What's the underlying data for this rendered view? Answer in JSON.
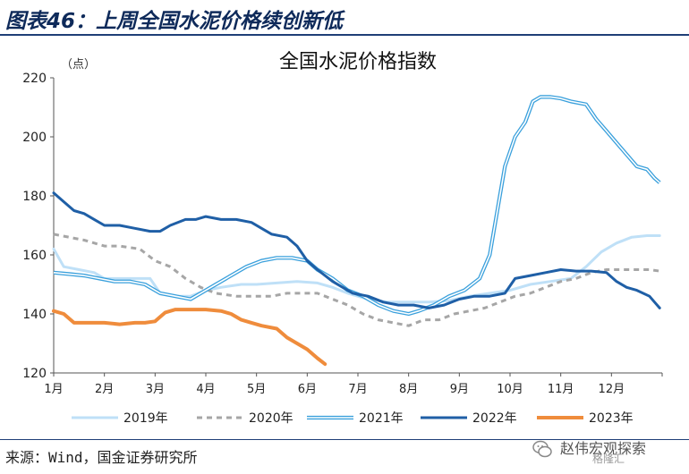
{
  "header": {
    "title": "图表46：上周全国水泥价格续创新低"
  },
  "footer": {
    "source": "来源：Wind，国金证券研究所",
    "watermark_text": "赵伟宏观探索",
    "watermark_brand": "格隆汇"
  },
  "chart_data": {
    "type": "line",
    "title": "全国水泥价格指数",
    "ylabel": "（点）",
    "xlabel": "",
    "ylim": [
      120,
      220
    ],
    "yticks": [
      120,
      140,
      160,
      180,
      200,
      220
    ],
    "xlim": [
      1,
      13
    ],
    "xticks": [
      1,
      2,
      3,
      4,
      5,
      6,
      7,
      8,
      9,
      10,
      11,
      12
    ],
    "xtick_labels": [
      "1月",
      "2月",
      "3月",
      "4月",
      "5月",
      "6月",
      "7月",
      "8月",
      "9月",
      "10月",
      "11月",
      "12月"
    ],
    "legend_position": "bottom",
    "series": [
      {
        "name": "2019年",
        "color": "#bfe0f7",
        "style": "solid",
        "width": 3,
        "points": [
          [
            1.0,
            162
          ],
          [
            1.2,
            156
          ],
          [
            1.5,
            155
          ],
          [
            1.8,
            154
          ],
          [
            2.0,
            152
          ],
          [
            2.3,
            152
          ],
          [
            2.7,
            152
          ],
          [
            2.9,
            152
          ],
          [
            3.1,
            147
          ],
          [
            3.4,
            146
          ],
          [
            3.7,
            146
          ],
          [
            4.0,
            148
          ],
          [
            4.3,
            149
          ],
          [
            4.7,
            150
          ],
          [
            5.0,
            150
          ],
          [
            5.4,
            150.5
          ],
          [
            5.8,
            151
          ],
          [
            6.2,
            150.5
          ],
          [
            6.5,
            149
          ],
          [
            6.8,
            147
          ],
          [
            7.2,
            145
          ],
          [
            7.6,
            144
          ],
          [
            8.0,
            144
          ],
          [
            8.4,
            144
          ],
          [
            8.8,
            144.5
          ],
          [
            9.2,
            146
          ],
          [
            9.6,
            147
          ],
          [
            10.0,
            148
          ],
          [
            10.4,
            150
          ],
          [
            10.8,
            151
          ],
          [
            11.2,
            152
          ],
          [
            11.5,
            156
          ],
          [
            11.8,
            161
          ],
          [
            12.1,
            164
          ],
          [
            12.4,
            166
          ],
          [
            12.7,
            166.5
          ],
          [
            12.95,
            166.5
          ]
        ]
      },
      {
        "name": "2020年",
        "color": "#a6a6a6",
        "style": "dashed",
        "width": 3,
        "points": [
          [
            1.0,
            167
          ],
          [
            1.3,
            166
          ],
          [
            1.6,
            165
          ],
          [
            2.0,
            163
          ],
          [
            2.3,
            163
          ],
          [
            2.7,
            162
          ],
          [
            3.0,
            158
          ],
          [
            3.3,
            156
          ],
          [
            3.6,
            152
          ],
          [
            3.9,
            149
          ],
          [
            4.2,
            147
          ],
          [
            4.6,
            146
          ],
          [
            5.0,
            146
          ],
          [
            5.3,
            146
          ],
          [
            5.6,
            147
          ],
          [
            5.9,
            147
          ],
          [
            6.2,
            147
          ],
          [
            6.5,
            145
          ],
          [
            6.8,
            143
          ],
          [
            7.1,
            140
          ],
          [
            7.4,
            138
          ],
          [
            7.7,
            137
          ],
          [
            8.0,
            136
          ],
          [
            8.3,
            138
          ],
          [
            8.6,
            138
          ],
          [
            8.9,
            140
          ],
          [
            9.2,
            141
          ],
          [
            9.5,
            142
          ],
          [
            9.8,
            144
          ],
          [
            10.1,
            146
          ],
          [
            10.4,
            147
          ],
          [
            10.7,
            149
          ],
          [
            11.0,
            151
          ],
          [
            11.3,
            152
          ],
          [
            11.6,
            154
          ],
          [
            11.9,
            155
          ],
          [
            12.2,
            155
          ],
          [
            12.5,
            155
          ],
          [
            12.75,
            155
          ],
          [
            12.95,
            154.5
          ]
        ]
      },
      {
        "name": "2021年",
        "color": "#3aa0dc",
        "style": "double",
        "width": 1.3,
        "points": [
          [
            1.0,
            154
          ],
          [
            1.3,
            153.5
          ],
          [
            1.6,
            153
          ],
          [
            1.9,
            152
          ],
          [
            2.2,
            151
          ],
          [
            2.5,
            151
          ],
          [
            2.8,
            150
          ],
          [
            3.1,
            147
          ],
          [
            3.4,
            146
          ],
          [
            3.7,
            145
          ],
          [
            4.0,
            148
          ],
          [
            4.2,
            150
          ],
          [
            4.5,
            153
          ],
          [
            4.8,
            156
          ],
          [
            5.1,
            158
          ],
          [
            5.4,
            159
          ],
          [
            5.7,
            159
          ],
          [
            6.0,
            158
          ],
          [
            6.2,
            155
          ],
          [
            6.5,
            152
          ],
          [
            6.8,
            148
          ],
          [
            7.1,
            146
          ],
          [
            7.4,
            143
          ],
          [
            7.7,
            141
          ],
          [
            8.0,
            140
          ],
          [
            8.2,
            141
          ],
          [
            8.5,
            143
          ],
          [
            8.8,
            146
          ],
          [
            9.1,
            148
          ],
          [
            9.4,
            152
          ],
          [
            9.6,
            160
          ],
          [
            9.75,
            175
          ],
          [
            9.9,
            190
          ],
          [
            10.1,
            200
          ],
          [
            10.3,
            205
          ],
          [
            10.45,
            212
          ],
          [
            10.6,
            213.5
          ],
          [
            10.8,
            213.5
          ],
          [
            11.0,
            213
          ],
          [
            11.2,
            212
          ],
          [
            11.5,
            211
          ],
          [
            11.7,
            206
          ],
          [
            11.9,
            202
          ],
          [
            12.1,
            198
          ],
          [
            12.3,
            194
          ],
          [
            12.5,
            190
          ],
          [
            12.7,
            189
          ],
          [
            12.85,
            186
          ],
          [
            12.95,
            184.5
          ]
        ]
      },
      {
        "name": "2022年",
        "color": "#1f5fa6",
        "style": "solid",
        "width": 3,
        "points": [
          [
            1.0,
            181
          ],
          [
            1.2,
            178
          ],
          [
            1.4,
            175
          ],
          [
            1.6,
            174
          ],
          [
            1.8,
            172
          ],
          [
            2.0,
            170
          ],
          [
            2.3,
            170
          ],
          [
            2.6,
            169
          ],
          [
            2.9,
            168
          ],
          [
            3.1,
            168
          ],
          [
            3.3,
            170
          ],
          [
            3.6,
            172
          ],
          [
            3.8,
            172
          ],
          [
            4.0,
            173
          ],
          [
            4.3,
            172
          ],
          [
            4.6,
            172
          ],
          [
            4.9,
            171
          ],
          [
            5.1,
            169
          ],
          [
            5.3,
            167
          ],
          [
            5.6,
            166
          ],
          [
            5.8,
            163
          ],
          [
            6.0,
            158
          ],
          [
            6.2,
            155
          ],
          [
            6.5,
            151
          ],
          [
            6.7,
            149
          ],
          [
            6.9,
            147
          ],
          [
            7.2,
            146
          ],
          [
            7.5,
            144
          ],
          [
            7.8,
            143
          ],
          [
            8.1,
            143
          ],
          [
            8.4,
            142
          ],
          [
            8.7,
            143
          ],
          [
            9.0,
            145
          ],
          [
            9.3,
            146
          ],
          [
            9.6,
            146
          ],
          [
            9.9,
            147
          ],
          [
            10.1,
            152
          ],
          [
            10.4,
            153
          ],
          [
            10.7,
            154
          ],
          [
            11.0,
            155
          ],
          [
            11.3,
            154.5
          ],
          [
            11.6,
            154.5
          ],
          [
            11.9,
            154
          ],
          [
            12.1,
            151
          ],
          [
            12.3,
            149
          ],
          [
            12.5,
            148
          ],
          [
            12.75,
            146
          ],
          [
            12.85,
            144
          ],
          [
            12.95,
            142
          ]
        ]
      },
      {
        "name": "2023年",
        "color": "#ef8c3c",
        "style": "solid",
        "width": 4,
        "points": [
          [
            1.0,
            141
          ],
          [
            1.2,
            140
          ],
          [
            1.4,
            137
          ],
          [
            1.7,
            137
          ],
          [
            2.0,
            137
          ],
          [
            2.3,
            136.5
          ],
          [
            2.6,
            137
          ],
          [
            2.8,
            137
          ],
          [
            3.0,
            137.5
          ],
          [
            3.1,
            139
          ],
          [
            3.2,
            140.5
          ],
          [
            3.4,
            141.5
          ],
          [
            3.7,
            141.5
          ],
          [
            4.0,
            141.5
          ],
          [
            4.3,
            141
          ],
          [
            4.5,
            140
          ],
          [
            4.7,
            138
          ],
          [
            4.9,
            137
          ],
          [
            5.1,
            136
          ],
          [
            5.4,
            135
          ],
          [
            5.6,
            132
          ],
          [
            5.8,
            130
          ],
          [
            6.0,
            128
          ],
          [
            6.2,
            125
          ],
          [
            6.35,
            123
          ]
        ]
      }
    ]
  }
}
